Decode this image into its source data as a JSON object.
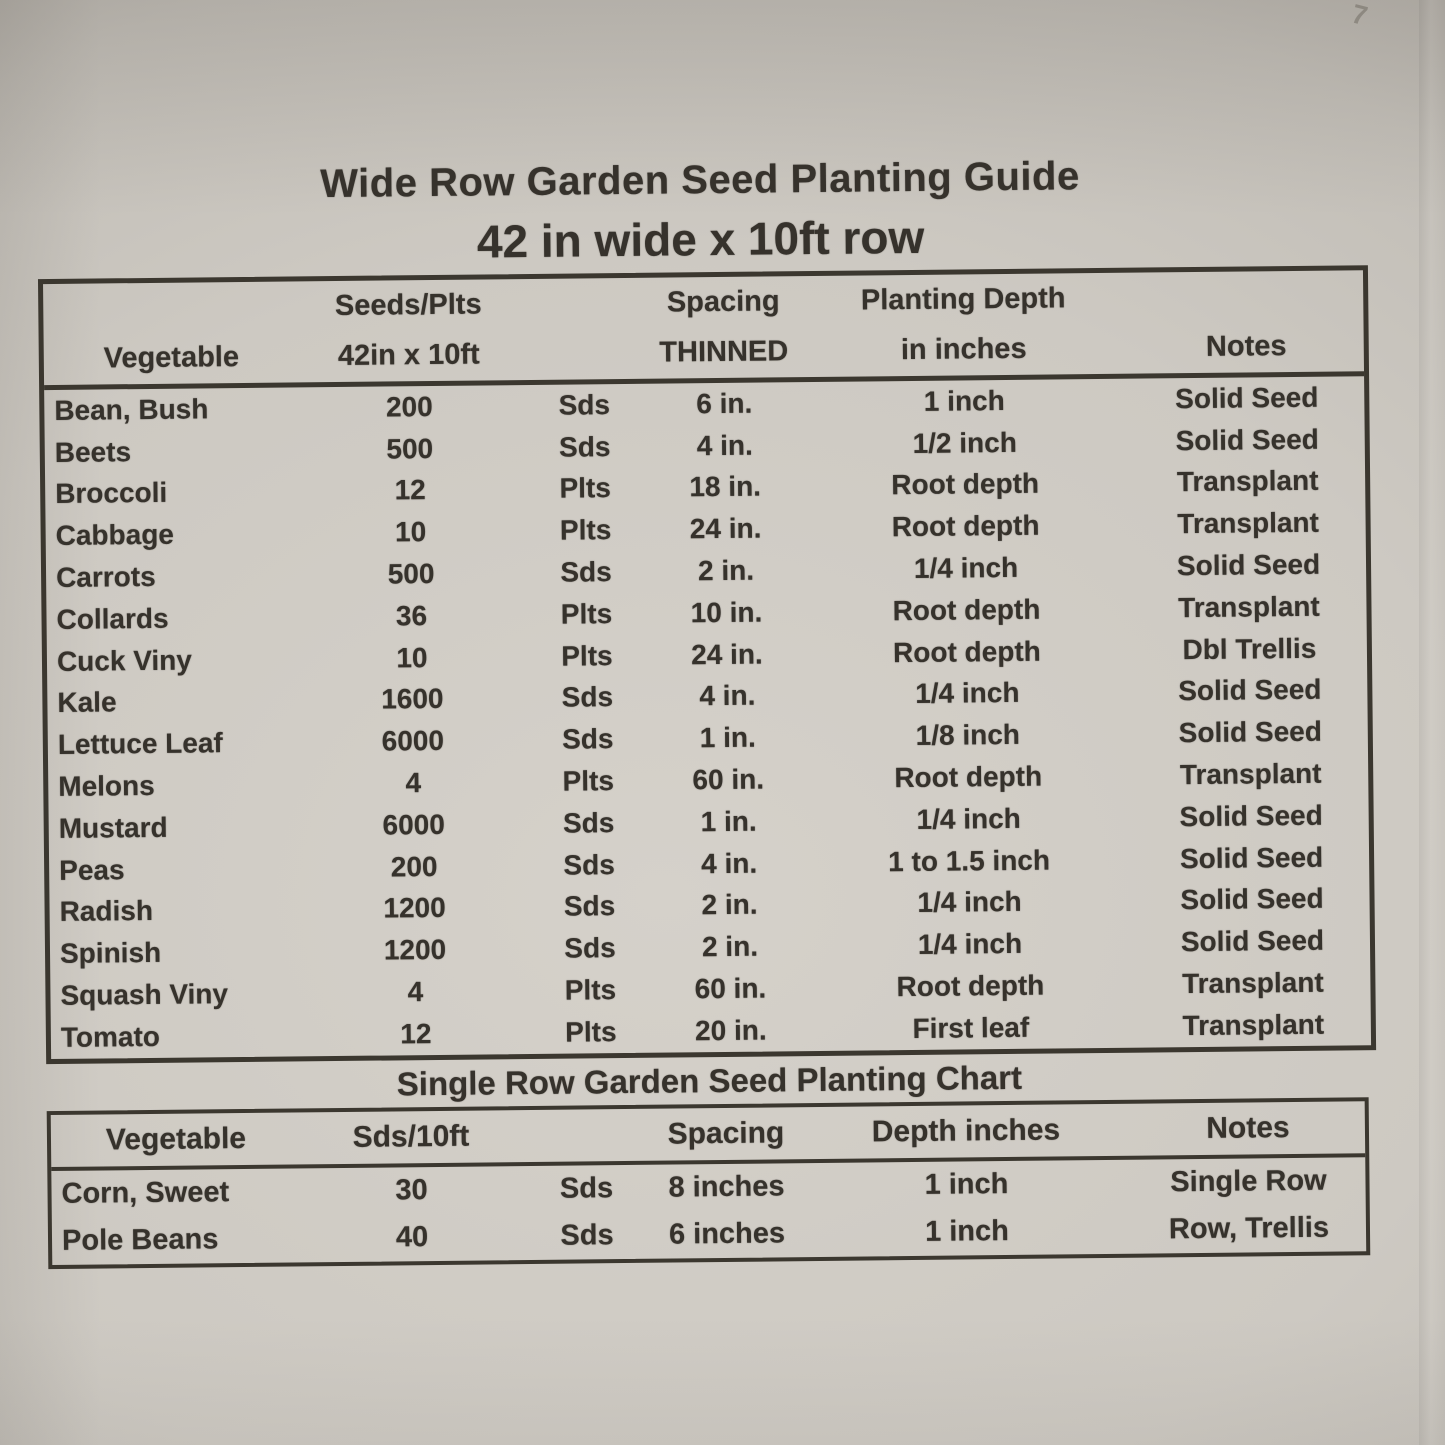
{
  "colors": {
    "ink": "#36322c",
    "paper": "#cdc9c2"
  },
  "photo": {
    "corner_mark": "7"
  },
  "wide_row": {
    "title": "Wide Row Garden Seed Planting Guide",
    "subtitle": "42 in wide x 10ft row",
    "header": {
      "vegetable": "Vegetable",
      "seeds_line1": "Seeds/Plts",
      "seeds_line2": "42in x 10ft",
      "spacing_line1": "Spacing",
      "spacing_line2": "THINNED",
      "depth_line1": "Planting Depth",
      "depth_line2": "in inches",
      "notes": "Notes"
    },
    "rows": [
      {
        "vegetable": "Bean, Bush",
        "qty": "200",
        "unit": "Sds",
        "spacing": "6 in.",
        "depth": "1 inch",
        "notes": "Solid Seed"
      },
      {
        "vegetable": "Beets",
        "qty": "500",
        "unit": "Sds",
        "spacing": "4 in.",
        "depth": "1/2 inch",
        "notes": "Solid Seed"
      },
      {
        "vegetable": "Broccoli",
        "qty": "12",
        "unit": "Plts",
        "spacing": "18 in.",
        "depth": "Root depth",
        "notes": "Transplant"
      },
      {
        "vegetable": "Cabbage",
        "qty": "10",
        "unit": "Plts",
        "spacing": "24 in.",
        "depth": "Root depth",
        "notes": "Transplant"
      },
      {
        "vegetable": "Carrots",
        "qty": "500",
        "unit": "Sds",
        "spacing": "2 in.",
        "depth": "1/4 inch",
        "notes": "Solid Seed"
      },
      {
        "vegetable": "Collards",
        "qty": "36",
        "unit": "Plts",
        "spacing": "10 in.",
        "depth": "Root depth",
        "notes": "Transplant"
      },
      {
        "vegetable": "Cuck Viny",
        "qty": "10",
        "unit": "Plts",
        "spacing": "24 in.",
        "depth": "Root depth",
        "notes": "Dbl Trellis"
      },
      {
        "vegetable": "Kale",
        "qty": "1600",
        "unit": "Sds",
        "spacing": "4 in.",
        "depth": "1/4 inch",
        "notes": "Solid Seed"
      },
      {
        "vegetable": "Lettuce Leaf",
        "qty": "6000",
        "unit": "Sds",
        "spacing": "1 in.",
        "depth": "1/8 inch",
        "notes": "Solid Seed"
      },
      {
        "vegetable": "Melons",
        "qty": "4",
        "unit": "Plts",
        "spacing": "60 in.",
        "depth": "Root depth",
        "notes": "Transplant"
      },
      {
        "vegetable": "Mustard",
        "qty": "6000",
        "unit": "Sds",
        "spacing": "1 in.",
        "depth": "1/4 inch",
        "notes": "Solid Seed"
      },
      {
        "vegetable": "Peas",
        "qty": "200",
        "unit": "Sds",
        "spacing": "4 in.",
        "depth": "1 to 1.5 inch",
        "notes": "Solid Seed"
      },
      {
        "vegetable": "Radish",
        "qty": "1200",
        "unit": "Sds",
        "spacing": "2 in.",
        "depth": "1/4 inch",
        "notes": "Solid Seed"
      },
      {
        "vegetable": "Spinish",
        "qty": "1200",
        "unit": "Sds",
        "spacing": "2 in.",
        "depth": "1/4 inch",
        "notes": "Solid Seed"
      },
      {
        "vegetable": "Squash Viny",
        "qty": "4",
        "unit": "Plts",
        "spacing": "60 in.",
        "depth": "Root depth",
        "notes": "Transplant"
      },
      {
        "vegetable": "Tomato",
        "qty": "12",
        "unit": "Plts",
        "spacing": "20 in.",
        "depth": "First leaf",
        "notes": "Transplant"
      }
    ]
  },
  "single_row": {
    "title": "Single Row Garden Seed Planting Chart",
    "header": {
      "vegetable": "Vegetable",
      "qty": "Sds/10ft",
      "spacing": "Spacing",
      "depth": "Depth inches",
      "notes": "Notes"
    },
    "rows": [
      {
        "vegetable": "Corn, Sweet",
        "qty": "30",
        "unit": "Sds",
        "spacing": "8 inches",
        "depth": "1 inch",
        "notes": "Single Row"
      },
      {
        "vegetable": "Pole Beans",
        "qty": "40",
        "unit": "Sds",
        "spacing": "6 inches",
        "depth": "1 inch",
        "notes": "Row, Trellis"
      }
    ]
  }
}
